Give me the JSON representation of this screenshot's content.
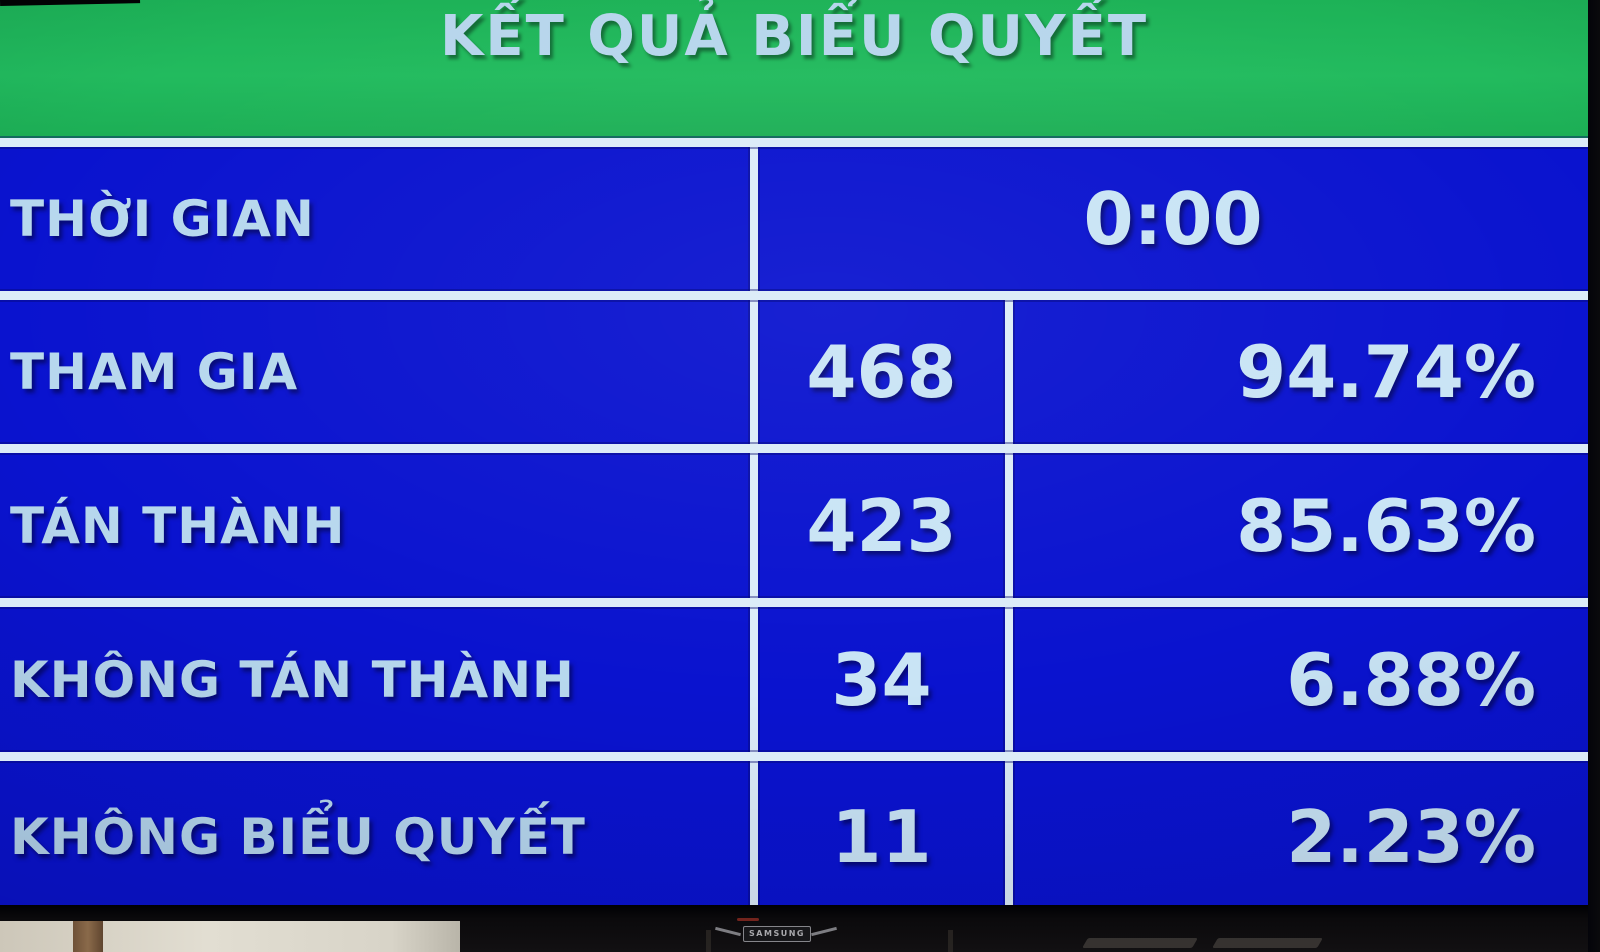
{
  "board": {
    "title": "KẾT QUẢ BIỂU QUYẾT",
    "time_row": {
      "label": "THỜI GIAN",
      "value": "0:00"
    },
    "rows": [
      {
        "label": "THAM GIA",
        "count": "468",
        "percent": "94.74%"
      },
      {
        "label": "TÁN THÀNH",
        "count": "423",
        "percent": "85.63%"
      },
      {
        "label": "KHÔNG TÁN THÀNH",
        "count": "34",
        "percent": "6.88%"
      },
      {
        "label": "KHÔNG BIỂU QUYẾT",
        "count": "11",
        "percent": "2.23%"
      }
    ],
    "colors": {
      "header_green": "#1eb75a",
      "board_blue": "#0a13cf",
      "grid_line": "#dcecf8",
      "label_text": "#b7d8ee",
      "value_text": "#c9e4f5"
    }
  },
  "tv": {
    "brand": "SAMSUNG"
  },
  "chart_data": {
    "type": "table",
    "title": "KẾT QUẢ BIỂU QUYẾT",
    "columns": [
      "label",
      "count",
      "percent"
    ],
    "rows": [
      [
        "THỜI GIAN",
        "0:00",
        ""
      ],
      [
        "THAM GIA",
        "468",
        "94.74%"
      ],
      [
        "TÁN THÀNH",
        "423",
        "85.63%"
      ],
      [
        "KHÔNG TÁN THÀNH",
        "34",
        "6.88%"
      ],
      [
        "KHÔNG BIỂU QUYẾT",
        "11",
        "2.23%"
      ]
    ],
    "notes": {
      "time_value": "0:00",
      "participating": 468,
      "participating_pct": 94.74,
      "approve": 423,
      "approve_pct": 85.63,
      "disapprove": 34,
      "disapprove_pct": 6.88,
      "abstain": 11,
      "abstain_pct": 2.23
    }
  }
}
